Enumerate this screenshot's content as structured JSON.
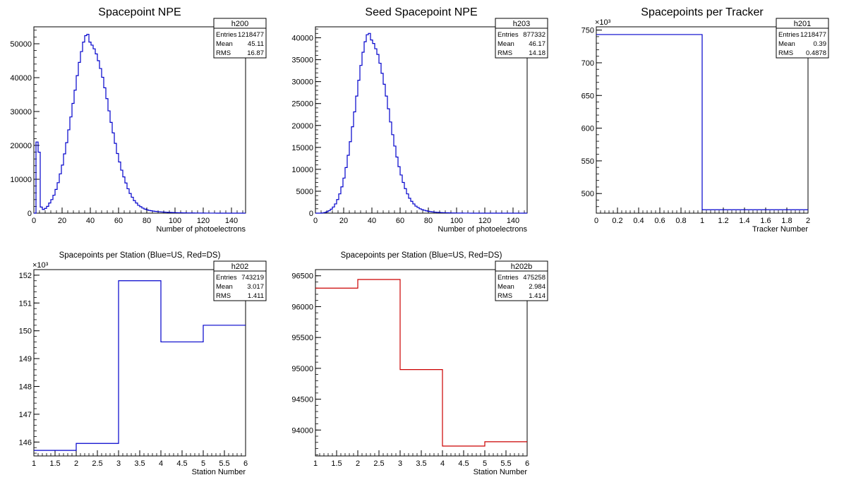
{
  "chart_data": [
    {
      "type": "histogram",
      "stats_name": "h200",
      "title": "Spacepoint NPE",
      "xlabel": "Number of photoelectrons",
      "ylabel": "",
      "xlim": [
        0,
        150
      ],
      "ylim": [
        0,
        55000
      ],
      "xticks": [
        0,
        20,
        40,
        60,
        80,
        100,
        120,
        140
      ],
      "yticks": [
        0,
        10000,
        20000,
        30000,
        40000,
        50000
      ],
      "color": "#0000cc",
      "stats": [
        {
          "label": "Entries",
          "value": "1218477"
        },
        {
          "label": "Mean",
          "value": "45.11"
        },
        {
          "label": "RMS",
          "value": "16.87"
        }
      ],
      "bin_width": 1.5,
      "values": [
        0,
        21000,
        18000,
        1800,
        1100,
        1400,
        2000,
        3000,
        4000,
        5300,
        7000,
        9000,
        11600,
        14200,
        17500,
        20800,
        24600,
        28400,
        32400,
        36300,
        40600,
        44500,
        47700,
        50500,
        52400,
        52800,
        50500,
        49600,
        48500,
        47000,
        45000,
        42700,
        40100,
        37000,
        33800,
        30200,
        26800,
        23700,
        20600,
        17600,
        15100,
        12700,
        10700,
        8900,
        7200,
        5800,
        4700,
        3700,
        3000,
        2300,
        1900,
        1500,
        1200,
        1000,
        800,
        700,
        600,
        520,
        460,
        400,
        350,
        310,
        270,
        240,
        210,
        180,
        160,
        140,
        120,
        100,
        90,
        80,
        70,
        60,
        50,
        45,
        40,
        35,
        30,
        25,
        20,
        18,
        15,
        12,
        10,
        8,
        6,
        5,
        4,
        3,
        2,
        1,
        1,
        0,
        0,
        0,
        0,
        0,
        0,
        0
      ]
    },
    {
      "type": "histogram",
      "stats_name": "h203",
      "title": "Seed Spacepoint NPE",
      "xlabel": "Number of photoelectrons",
      "ylabel": "",
      "xlim": [
        0,
        150
      ],
      "ylim": [
        0,
        42500
      ],
      "xticks": [
        0,
        20,
        40,
        60,
        80,
        100,
        120,
        140
      ],
      "yticks": [
        0,
        5000,
        10000,
        15000,
        20000,
        25000,
        30000,
        35000,
        40000
      ],
      "color": "#0000cc",
      "stats": [
        {
          "label": "Entries",
          "value": "877332"
        },
        {
          "label": "Mean",
          "value": "46.17"
        },
        {
          "label": "RMS",
          "value": "14.18"
        }
      ],
      "bin_width": 1.5,
      "values": [
        0,
        0,
        0,
        50,
        150,
        300,
        550,
        900,
        1400,
        2100,
        3100,
        4400,
        6000,
        8000,
        10400,
        13200,
        16300,
        19700,
        23100,
        26700,
        30300,
        33700,
        36700,
        39100,
        40700,
        41000,
        39500,
        38700,
        37500,
        36200,
        34200,
        31900,
        29400,
        26700,
        23800,
        20800,
        17900,
        15300,
        12800,
        10600,
        8700,
        7000,
        5600,
        4400,
        3400,
        2700,
        2100,
        1600,
        1300,
        1000,
        800,
        650,
        520,
        420,
        340,
        280,
        230,
        190,
        160,
        130,
        110,
        90,
        75,
        60,
        50,
        40,
        32,
        25,
        20,
        16,
        12,
        9,
        7,
        5,
        4,
        3,
        2,
        1,
        1,
        0,
        0,
        0,
        0,
        0,
        0,
        0,
        0,
        0,
        0,
        0,
        0,
        0,
        0,
        0,
        0,
        0,
        0,
        0,
        0,
        0
      ]
    },
    {
      "type": "histogram",
      "stats_name": "h201",
      "title": "Spacepoints per Tracker",
      "xlabel": "Tracker Number",
      "ylabel": "",
      "exponent_label": "×10³",
      "xlim": [
        0,
        2
      ],
      "ylim": [
        470,
        755
      ],
      "xticks": [
        0,
        0.2,
        0.4,
        0.6,
        0.8,
        1,
        1.2,
        1.4,
        1.6,
        1.8,
        2
      ],
      "yticks": [
        500,
        550,
        600,
        650,
        700,
        750
      ],
      "color": "#0000cc",
      "stats": [
        {
          "label": "Entries",
          "value": "1218477"
        },
        {
          "label": "Mean",
          "value": "0.39"
        },
        {
          "label": "RMS",
          "value": "0.4878"
        }
      ],
      "bin_edges": [
        0,
        1,
        2
      ],
      "values": [
        743.219,
        475.258
      ]
    },
    {
      "type": "histogram",
      "stats_name": "h202",
      "title": "Spacepoints per Station (Blue=US, Red=DS)",
      "xlabel": "Station Number",
      "ylabel": "",
      "exponent_label": "×10³",
      "xlim": [
        1,
        6
      ],
      "ylim": [
        145.5,
        152.2
      ],
      "xticks": [
        1,
        1.5,
        2,
        2.5,
        3,
        3.5,
        4,
        4.5,
        5,
        5.5,
        6
      ],
      "yticks": [
        146,
        147,
        148,
        149,
        150,
        151,
        152
      ],
      "color": "#0000cc",
      "stats": [
        {
          "label": "Entries",
          "value": "743219"
        },
        {
          "label": "Mean",
          "value": "3.017"
        },
        {
          "label": "RMS",
          "value": "1.411"
        }
      ],
      "bin_edges": [
        1,
        2,
        3,
        4,
        5,
        6
      ],
      "values": [
        145.7,
        145.95,
        151.8,
        149.6,
        150.2
      ]
    },
    {
      "type": "histogram",
      "stats_name": "h202b",
      "title": "Spacepoints per Station (Blue=US, Red=DS)",
      "xlabel": "Station Number",
      "ylabel": "",
      "xlim": [
        1,
        6
      ],
      "ylim": [
        93580,
        96600
      ],
      "xticks": [
        1,
        1.5,
        2,
        2.5,
        3,
        3.5,
        4,
        4.5,
        5,
        5.5,
        6
      ],
      "yticks": [
        94000,
        94500,
        95000,
        95500,
        96000,
        96500
      ],
      "color": "#cc0000",
      "stats": [
        {
          "label": "Entries",
          "value": "475258"
        },
        {
          "label": "Mean",
          "value": "2.984"
        },
        {
          "label": "RMS",
          "value": "1.414"
        }
      ],
      "bin_edges": [
        1,
        2,
        3,
        4,
        5,
        6
      ],
      "values": [
        96300,
        96440,
        94980,
        93740,
        93810
      ]
    }
  ]
}
